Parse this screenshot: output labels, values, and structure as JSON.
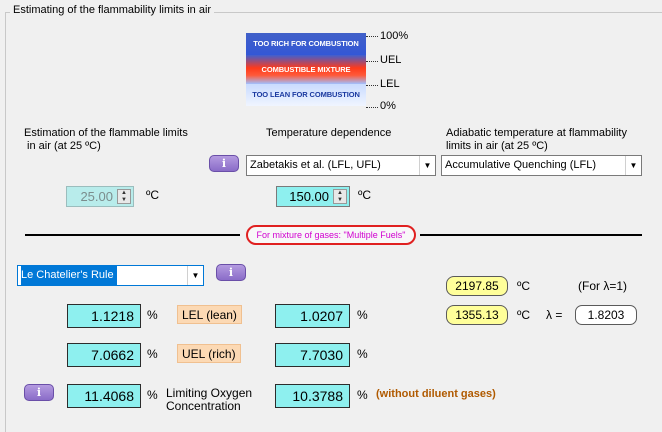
{
  "group_title": "Estimating of the flammability limits in air",
  "diagram": {
    "band_rich": "TOO RICH FOR COMBUSTION",
    "band_combustible": "COMBUSTIBLE MIXTURE",
    "band_lean": "TOO LEAN FOR COMBUSTION",
    "label_100": "100%",
    "label_uel": "UEL",
    "label_lel": "LEL",
    "label_0": "0%"
  },
  "estimation": {
    "heading": "Estimation of the flammable limits\n in air (at 25 ºC)",
    "temperature": "25.00",
    "unit": "ºC"
  },
  "temperature_dependence": {
    "heading": "Temperature dependence",
    "info_icon": "i",
    "selected": "Zabetakis et al. (LFL, UFL)",
    "temperature": "150.00",
    "unit": "ºC"
  },
  "adiabatic": {
    "heading": "Adiabatic temperature at flammability\nlimits in air (at 25 ºC)",
    "selected": "Accumulative Quenching (LFL)"
  },
  "mixture_note": "For mixture of gases: \"Multiple Fuels\"",
  "rule": {
    "selected": "Le Chatelier's Rule",
    "info_icon": "i"
  },
  "adiabatic_values": {
    "t1": "2197.85",
    "t1_unit": "ºC",
    "t1_note": "(For λ=1)",
    "t2": "1355.13",
    "t2_unit": "ºC",
    "lambda_label": "λ =",
    "lambda_value": "1.8203"
  },
  "limits": {
    "lel_label": "LEL (lean)",
    "uel_label": "UEL (rich)",
    "loc_label": "Limiting Oxygen\nConcentration",
    "percent": "%",
    "lel_25": "1.1218",
    "lel_t": "1.0207",
    "uel_25": "7.0662",
    "uel_t": "7.7030",
    "loc_25": "11.4068",
    "loc_t": "10.3788",
    "loc_note": "(without diluent gases)",
    "loc_info_icon": "i"
  }
}
